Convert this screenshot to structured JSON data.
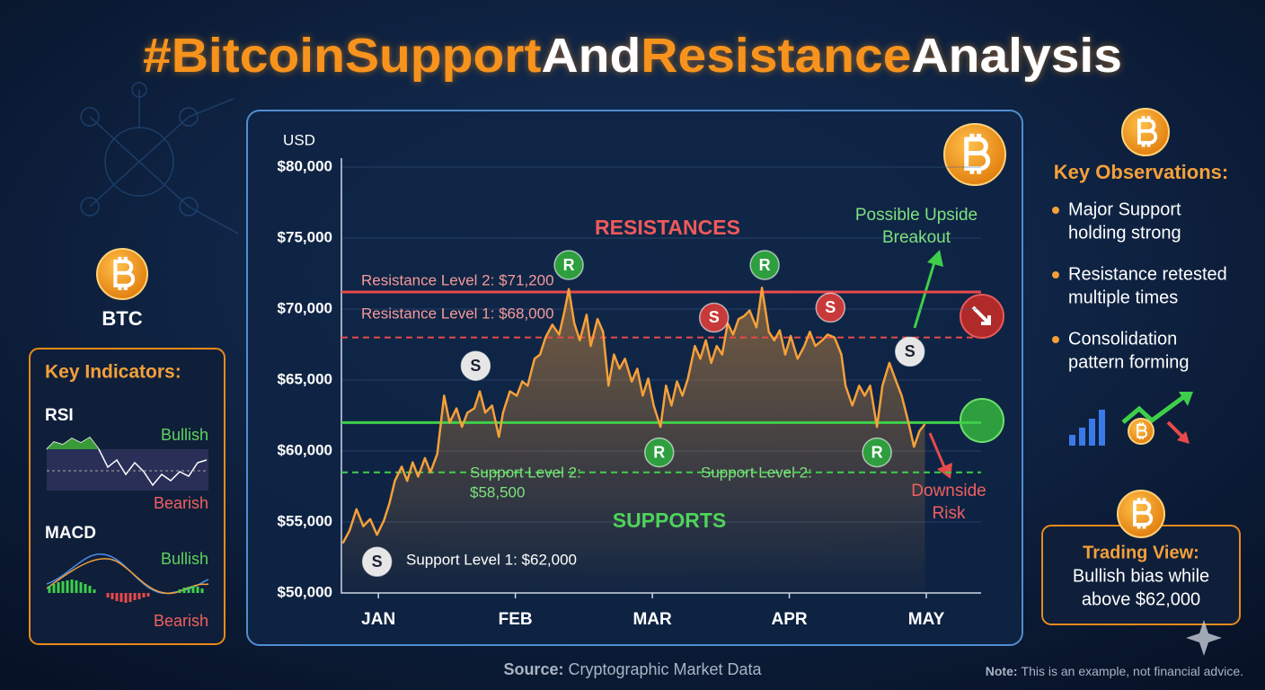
{
  "title_parts": [
    {
      "text": "#BitcoinSupport",
      "color": "#f7931a"
    },
    {
      "text": "And",
      "color": "#ffffff"
    },
    {
      "text": "Resistance",
      "color": "#f7931a"
    },
    {
      "text": "Analysis",
      "color": "#ffffff"
    }
  ],
  "left_panel": {
    "coin_label": "BTC",
    "title": "Key Indicators:",
    "indicators": [
      {
        "name": "RSI",
        "bullish": "Bullish",
        "bearish": "Bearish"
      },
      {
        "name": "MACD",
        "bullish": "Bullish",
        "bearish": "Bearish"
      }
    ]
  },
  "chart_data": {
    "type": "line",
    "y_label": "USD",
    "color": "#f5a03a",
    "x": [
      -0.26,
      -0.21,
      -0.16,
      -0.11,
      -0.06,
      -0.01,
      0.04,
      0.08,
      0.12,
      0.17,
      0.21,
      0.25,
      0.29,
      0.34,
      0.38,
      0.43,
      0.48,
      0.52,
      0.57,
      0.61,
      0.65,
      0.7,
      0.74,
      0.78,
      0.83,
      0.88,
      0.91,
      0.96,
      1.01,
      1.05,
      1.09,
      1.14,
      1.18,
      1.22,
      1.27,
      1.32,
      1.36,
      1.39,
      1.43,
      1.47,
      1.52,
      1.55,
      1.6,
      1.64,
      1.68,
      1.72,
      1.76,
      1.8,
      1.85,
      1.89,
      1.93,
      1.97,
      2.01,
      2.06,
      2.1,
      2.14,
      2.18,
      2.22,
      2.26,
      2.31,
      2.35,
      2.39,
      2.43,
      2.47,
      2.51,
      2.55,
      2.59,
      2.63,
      2.67,
      2.71,
      2.76,
      2.8,
      2.85,
      2.89,
      2.93,
      2.97,
      3.01,
      3.06,
      3.11,
      3.15,
      3.19,
      3.24,
      3.28,
      3.33,
      3.38,
      3.41,
      3.46,
      3.51,
      3.55,
      3.59,
      3.64,
      3.68,
      3.73,
      3.78,
      3.82,
      3.87,
      3.91,
      3.95,
      3.99
    ],
    "values": [
      53500,
      54400,
      55900,
      54700,
      55200,
      54100,
      55100,
      56300,
      57900,
      58900,
      57900,
      59200,
      58200,
      59500,
      58500,
      59800,
      63900,
      62000,
      63000,
      61700,
      62700,
      63000,
      64200,
      62700,
      63200,
      61000,
      62700,
      64200,
      63900,
      64900,
      64600,
      66500,
      66800,
      68000,
      68900,
      68200,
      69900,
      71400,
      69000,
      67800,
      69600,
      67400,
      69300,
      68400,
      64600,
      66800,
      65800,
      66500,
      64900,
      65800,
      63900,
      65100,
      63200,
      61700,
      64600,
      63200,
      64900,
      63900,
      65100,
      67400,
      66500,
      67800,
      66200,
      67400,
      66800,
      69000,
      68200,
      69300,
      69500,
      69900,
      68700,
      71500,
      68400,
      67800,
      68500,
      66800,
      68100,
      66500,
      67400,
      68400,
      67400,
      67800,
      68200,
      68000,
      66800,
      64600,
      63200,
      64600,
      63900,
      64600,
      61700,
      64600,
      66200,
      64900,
      63900,
      62000,
      60300,
      61400,
      61900
    ],
    "xlim": [
      -0.27,
      4.4
    ],
    "xticks": [
      {
        "value": 0,
        "label": "JAN"
      },
      {
        "value": 1,
        "label": "FEB"
      },
      {
        "value": 2,
        "label": "MAR"
      },
      {
        "value": 3,
        "label": "APR"
      },
      {
        "value": 4,
        "label": "MAY"
      }
    ],
    "ylim": [
      50000,
      80000
    ],
    "yticks": [
      {
        "value": 50000,
        "label": "$50,000"
      },
      {
        "value": 55000,
        "label": "$55,000"
      },
      {
        "value": 60000,
        "label": "$60,000"
      },
      {
        "value": 65000,
        "label": "$65,000"
      },
      {
        "value": 70000,
        "label": "$70,000"
      },
      {
        "value": 75000,
        "label": "$75,000"
      },
      {
        "value": 80000,
        "label": "$80,000"
      }
    ],
    "grid": true,
    "levels": [
      {
        "label": [
          "Resistance Level 2: $71,200"
        ],
        "value": 71200,
        "color": "#e84a4a",
        "dashed": false
      },
      {
        "label": [
          "Resistance Level 1: $68,000"
        ],
        "value": 68000,
        "color": "#e84a4a",
        "dashed": true
      },
      {
        "label": [
          "Support Level 1: $62,000"
        ],
        "value": 62000,
        "color": "#3ecf4a",
        "dashed": false
      },
      {
        "label": [
          "Support Level 2:",
          "$58,500"
        ],
        "value": 58500,
        "color": "#3ecf4a",
        "dashed": true
      }
    ],
    "markers": [
      {
        "label": "S",
        "x": -0.01,
        "y": 52200,
        "color": "#e6e6e6"
      },
      {
        "label": "S",
        "x": 0.71,
        "y": 66000,
        "color": "#e6e6e6"
      },
      {
        "label": "R",
        "x": 1.39,
        "y": 73100,
        "color": "#2e9e3e"
      },
      {
        "label": "R",
        "x": 2.05,
        "y": 59900,
        "color": "#2e9e3e"
      },
      {
        "label": "S",
        "x": 2.45,
        "y": 69400,
        "color": "#c83a3a"
      },
      {
        "label": "R",
        "x": 2.82,
        "y": 73100,
        "color": "#2e9e3e"
      },
      {
        "label": "S",
        "x": 3.3,
        "y": 70100,
        "color": "#c83a3a"
      },
      {
        "label": "R",
        "x": 3.64,
        "y": 59900,
        "color": "#2e9e3e"
      },
      {
        "label": "S",
        "x": 3.88,
        "y": 67000,
        "color": "#e6e6e6"
      }
    ],
    "zone_labels": {
      "resistances": "RESISTANCES",
      "supports": "SUPPORTS"
    },
    "callouts": {
      "upside": [
        "Possible Upside",
        "Breakout"
      ],
      "downside": [
        "Downside",
        "Risk"
      ],
      "support_repeat": "Support Level 2:"
    }
  },
  "right_panel": {
    "title": "Key Observations:",
    "items": [
      [
        "Major Support",
        "holding strong"
      ],
      [
        "Resistance retested",
        "multiple times"
      ],
      [
        "Consolidation",
        "pattern forming"
      ]
    ],
    "trading_view": {
      "title": "Trading View:",
      "text": [
        "Bullish bias while",
        "above $62,000"
      ]
    }
  },
  "footer": {
    "source_label": "Source:",
    "source": "Cryptographic Market Data",
    "note_label": "Note:",
    "note": "This is an example, not financial advice."
  }
}
